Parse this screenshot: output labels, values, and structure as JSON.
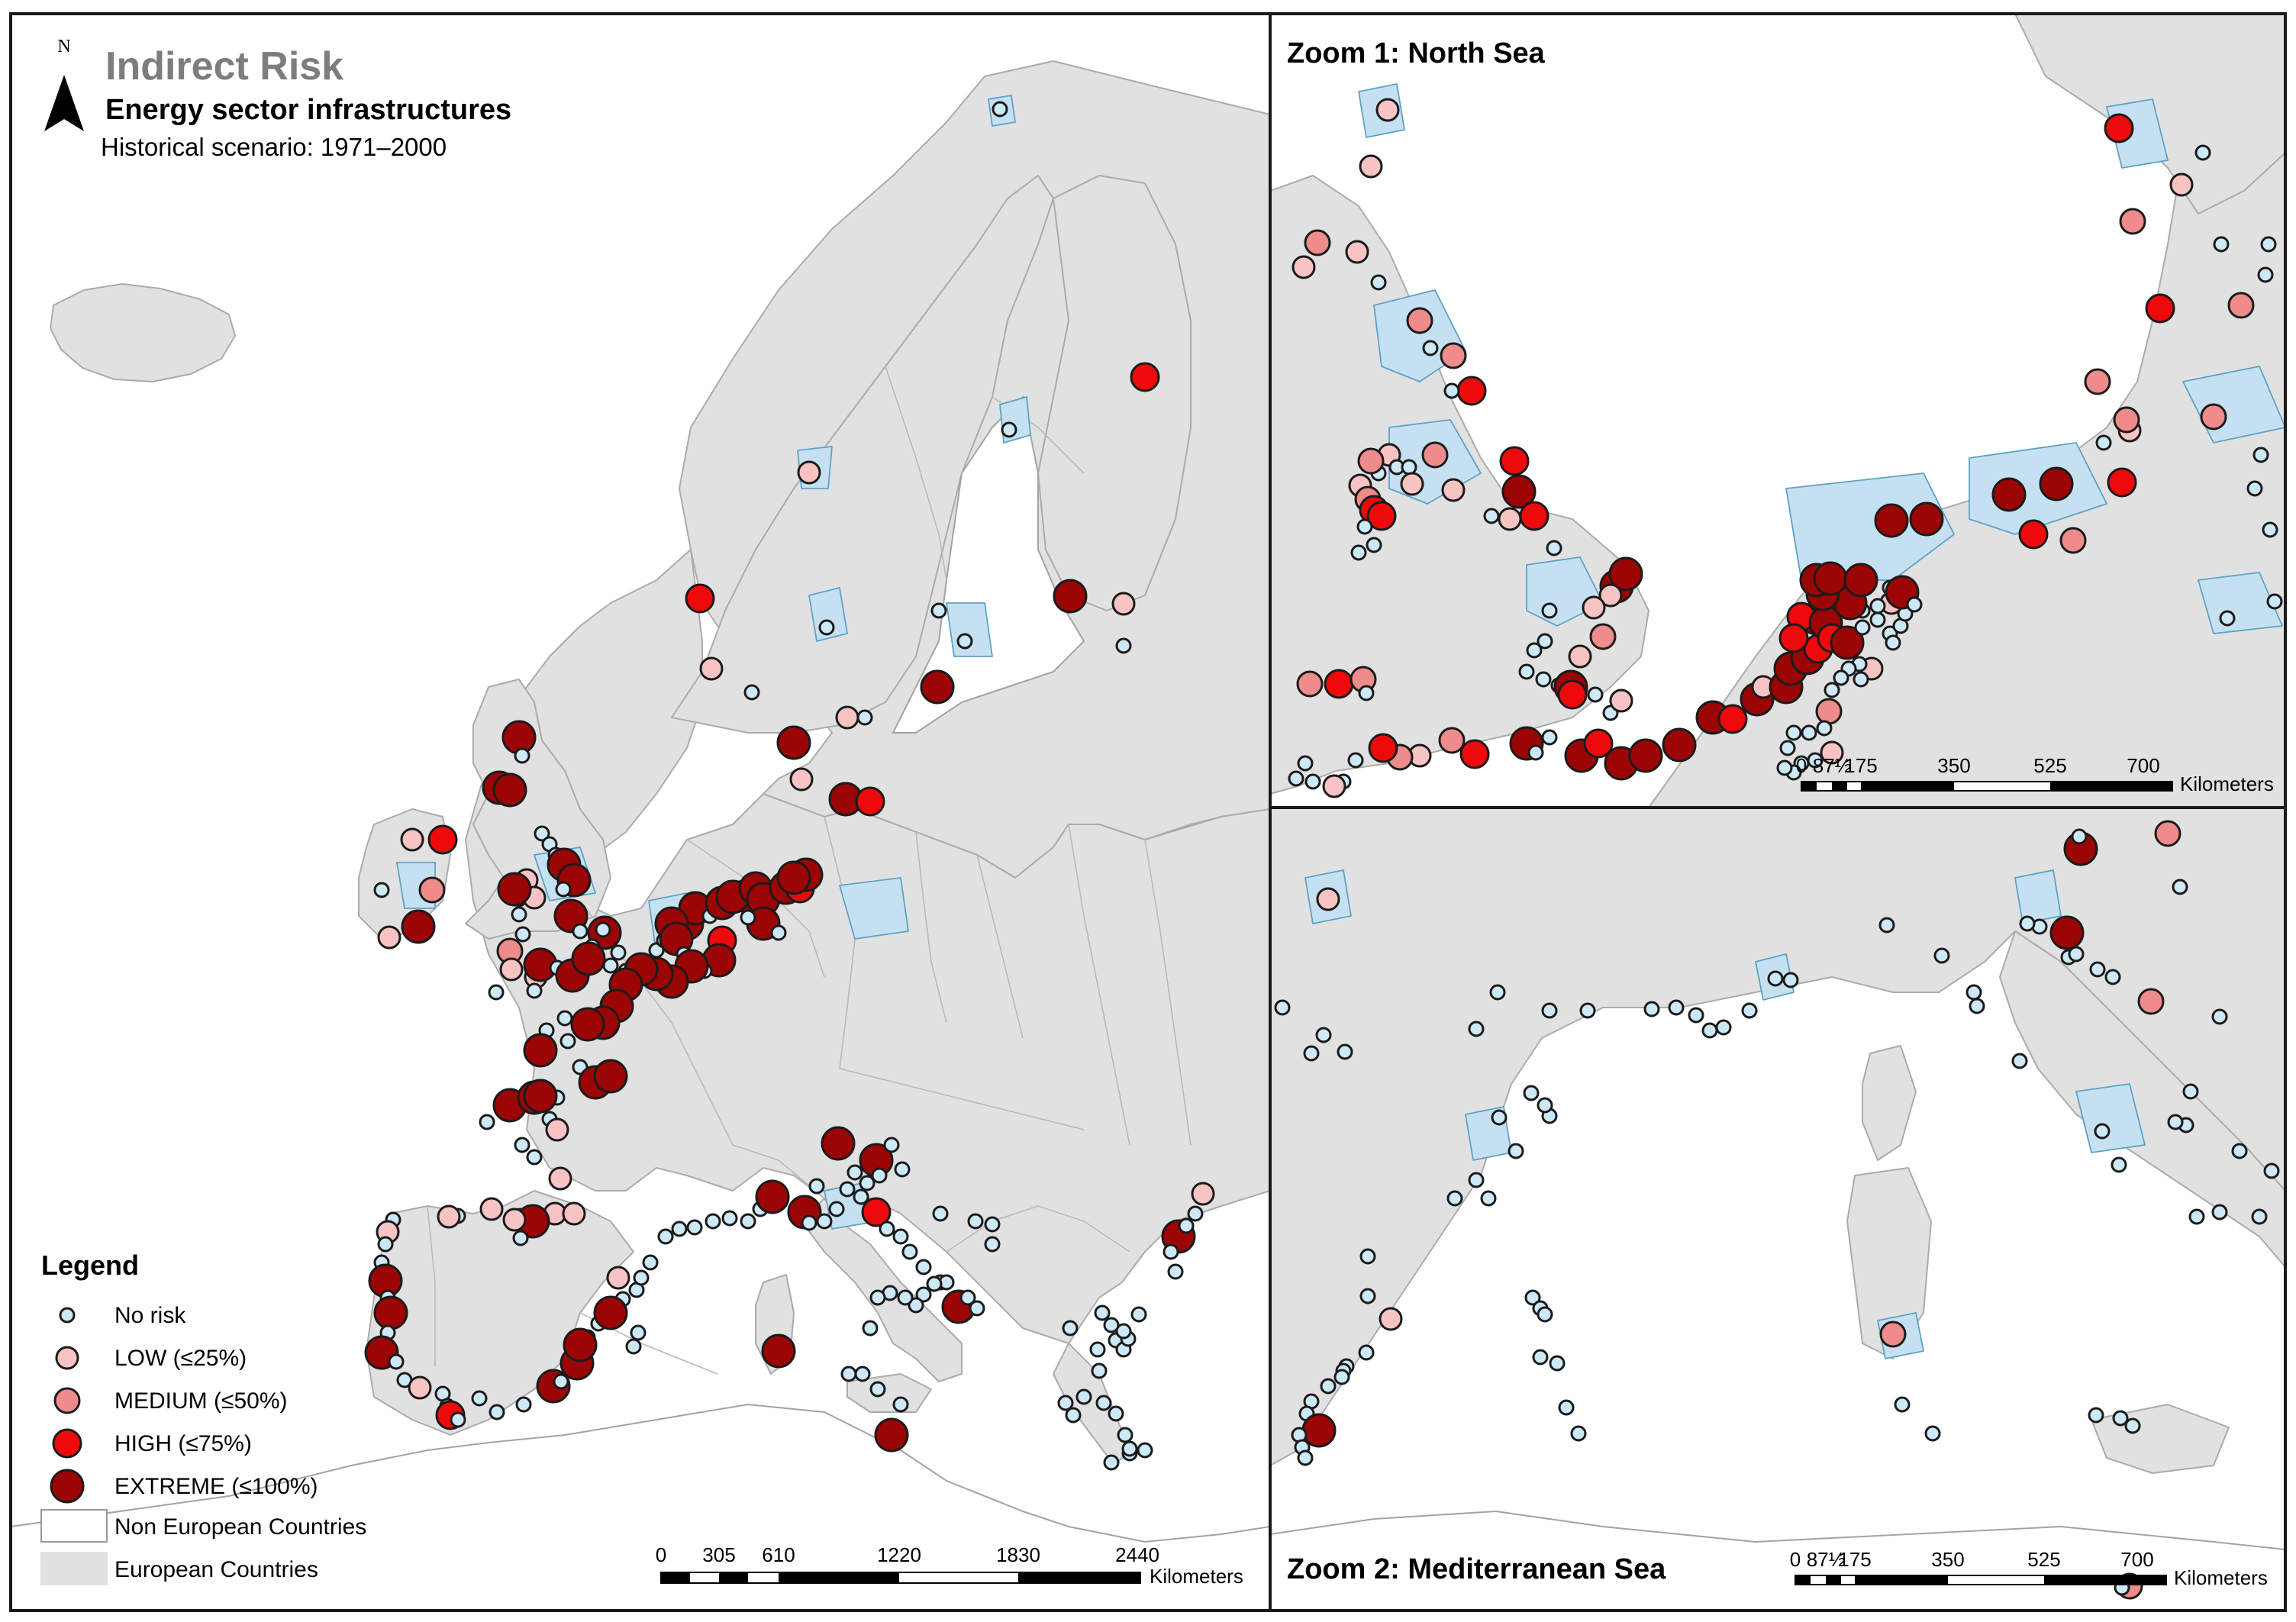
{
  "header": {
    "title": "Indirect Risk",
    "subtitle": "Energy sector infrastructures",
    "scenario": "Historical scenario: 1971–2000",
    "north_label": "N"
  },
  "legend": {
    "title": "Legend",
    "items": [
      {
        "label": "No risk",
        "color": "#cde8f6"
      },
      {
        "label": "LOW (≤25%)",
        "color": "#f8c3c3"
      },
      {
        "label": "MEDIUM (≤50%)",
        "color": "#ee8b8b"
      },
      {
        "label": "HIGH (≤75%)",
        "color": "#ee0a0a"
      },
      {
        "label": "EXTREME (≤100%)",
        "color": "#9c0505"
      }
    ],
    "areas": [
      {
        "label": "Non European Countries",
        "color": "#ffffff"
      },
      {
        "label": "European Countries",
        "color": "#e1e1e1"
      }
    ]
  },
  "zoom1": {
    "title": "Zoom 1: North Sea"
  },
  "zoom2": {
    "title": "Zoom 2: Mediterranean Sea"
  },
  "main_scale": {
    "ticks": [
      "0",
      "305",
      "610",
      "1220",
      "1830",
      "2440"
    ],
    "unit": "Kilometers"
  },
  "zoom_scale": {
    "ticks": [
      "0",
      "87½",
      "175",
      "350",
      "525",
      "700"
    ],
    "unit": "Kilometers"
  },
  "colors": {
    "none": "#cde8f6",
    "low": "#f8c3c3",
    "medium": "#ee8b8b",
    "high": "#ee0a0a",
    "extreme": "#9c0505",
    "basin": "#c5e1f1",
    "land": "#e1e1e1"
  }
}
